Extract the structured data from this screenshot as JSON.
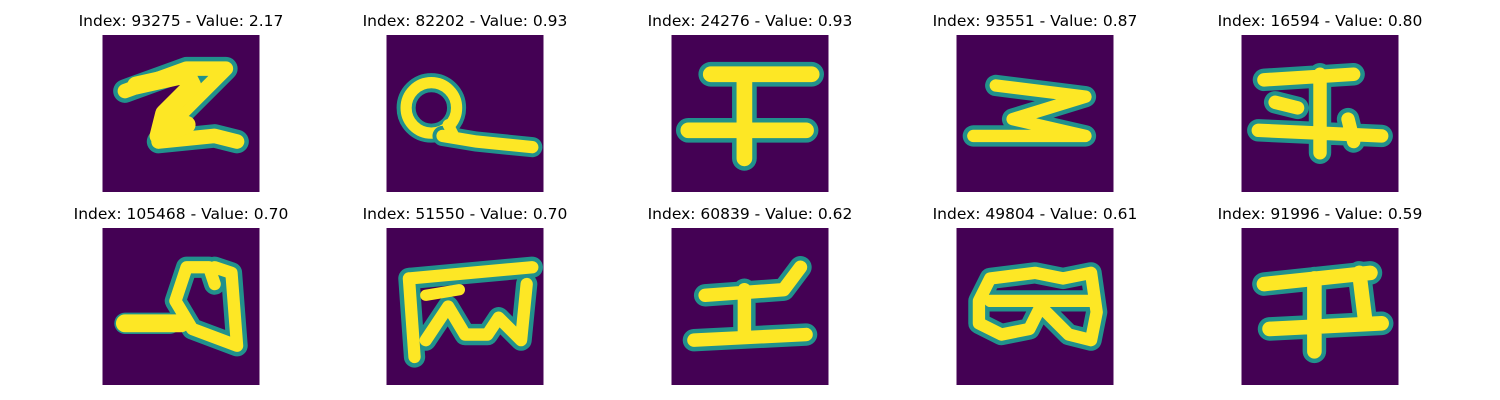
{
  "colors": {
    "background": "#440154",
    "foreground": "#fde725"
  },
  "panels": [
    {
      "title": "Index: 93275 - Value: 2.17",
      "glyph": "zigzag-z-shape"
    },
    {
      "title": "Index: 82202 - Value: 0.93",
      "glyph": "loop-with-tail"
    },
    {
      "title": "Index: 24276 - Value: 0.93",
      "glyph": "double-bar-with-stem"
    },
    {
      "title": "Index: 93551 - Value: 0.87",
      "glyph": "sideways-z-shape"
    },
    {
      "title": "Index: 16594 - Value: 0.80",
      "glyph": "double-bar-with-stem"
    },
    {
      "title": "Index: 105468 - Value: 0.70",
      "glyph": "loop-with-bar"
    },
    {
      "title": "Index: 51550 - Value: 0.70",
      "glyph": "box-with-wave"
    },
    {
      "title": "Index: 60839 - Value: 0.62",
      "glyph": "double-bar-with-stem"
    },
    {
      "title": "Index: 49804 - Value: 0.61",
      "glyph": "double-loop"
    },
    {
      "title": "Index: 91996 - Value: 0.59",
      "glyph": "double-bar-with-stem"
    }
  ]
}
